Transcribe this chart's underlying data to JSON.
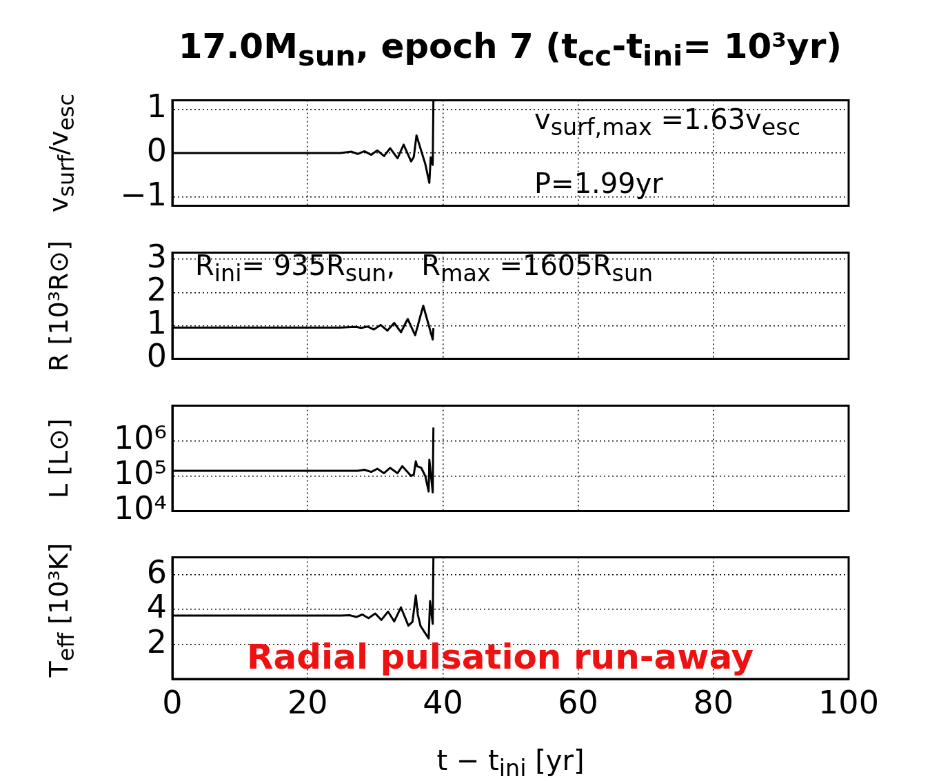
{
  "chart_data": [
    {
      "type": "line",
      "title": "17.0M$_{sun}$, epoch 7 (t$_{cc}$-t$_{ini}$= 10³yr)",
      "ylabel": "v$_{surf}$/v$_{esc}$",
      "annotations": [
        "v$_{surf,max}$ =1.63v$_{esc}$",
        "P=1.99yr"
      ],
      "x": [
        0,
        24.8,
        26.5,
        27.4,
        28.4,
        29.4,
        30.3,
        31.3,
        32.2,
        33.3,
        34.2,
        35.3,
        35.7,
        36.1,
        37.4,
        38.0,
        38.2,
        38.5,
        38.6
      ],
      "values": [
        0,
        0,
        0.03,
        -0.02,
        0.04,
        -0.04,
        0.06,
        -0.07,
        0.11,
        -0.12,
        0.19,
        -0.19,
        -0.09,
        0.4,
        -0.25,
        -0.68,
        -0.1,
        -0.27,
        1.2
      ],
      "color": "#000000",
      "xlim": [
        0,
        100
      ],
      "xticks": [
        0,
        20,
        40,
        60,
        80,
        100
      ],
      "ylim": [
        -1.2,
        1.2
      ],
      "yticks": [
        {
          "value": -1,
          "label": "−1"
        },
        0,
        1
      ],
      "grid": true,
      "tick_labels": "y"
    },
    {
      "type": "line",
      "ylabel": "R [10³R⊙]",
      "annotations": [
        "R$_{ini}$= 935R$_{sun}$,   R$_{max}$ =1605R$_{sun}$"
      ],
      "x": [
        0,
        24.8,
        27.2,
        27.9,
        28.9,
        29.8,
        30.8,
        31.8,
        32.8,
        33.8,
        34.8,
        35.9,
        37.1,
        38.5,
        38.6
      ],
      "values": [
        0.94,
        0.94,
        0.96,
        0.93,
        0.97,
        0.88,
        1.02,
        0.85,
        1.08,
        0.8,
        1.2,
        0.71,
        1.6,
        0.58,
        0.92
      ],
      "color": "#000000",
      "xlim": [
        0,
        100
      ],
      "xticks": [
        0,
        20,
        40,
        60,
        80,
        100
      ],
      "ylim": [
        0,
        3.2
      ],
      "yticks": [
        0,
        1,
        2,
        3
      ],
      "grid": true,
      "tick_labels": "y"
    },
    {
      "type": "line",
      "ylabel": "L [L⊙]",
      "log": "y",
      "x": [
        0,
        27.4,
        28.4,
        29.4,
        30.3,
        31.3,
        32.2,
        33.3,
        34.0,
        35.3,
        35.7,
        36.0,
        36.2,
        36.8,
        37.4,
        37.9,
        38.0,
        38.5,
        38.6
      ],
      "values": [
        140000,
        140000,
        150000,
        130000,
        160000,
        120000,
        170000,
        120000,
        190000,
        100000,
        110000,
        260000,
        190000,
        170000,
        100000,
        36000,
        290000,
        34000,
        2400000
      ],
      "color": "#000000",
      "xlim": [
        0,
        100
      ],
      "xticks": [
        0,
        20,
        40,
        60,
        80,
        100
      ],
      "ylim": [
        10000,
        10000000
      ],
      "yticks": [
        {
          "value": 10000,
          "label": "10⁴"
        },
        {
          "value": 100000,
          "label": "10⁵"
        },
        {
          "value": 1000000,
          "label": "10⁶"
        }
      ],
      "grid": true,
      "tick_labels": "y"
    },
    {
      "type": "line",
      "ylabel": "T$_{eff}$ [10³K]",
      "xlabel": "t − t$_{ini}$ [yr]",
      "annotations": [
        "Radial pulsation run-away"
      ],
      "x": [
        0,
        25.0,
        26.2,
        27.2,
        28.1,
        29.0,
        30.0,
        30.9,
        31.9,
        32.8,
        33.8,
        34.9,
        35.5,
        36.0,
        36.3,
        36.7,
        37.9,
        38.1,
        38.5,
        38.6
      ],
      "values": [
        3.65,
        3.65,
        3.67,
        3.57,
        3.71,
        3.5,
        3.77,
        3.4,
        3.88,
        3.31,
        4.12,
        3.07,
        3.29,
        4.81,
        3.7,
        3.05,
        2.33,
        4.48,
        3.17,
        7
      ],
      "color": "#000000",
      "xlim": [
        0,
        100
      ],
      "xticks": [
        0,
        20,
        40,
        60,
        80,
        100
      ],
      "ylim": [
        0,
        7
      ],
      "yticks": [
        2,
        4,
        6
      ],
      "grid": true
    }
  ]
}
